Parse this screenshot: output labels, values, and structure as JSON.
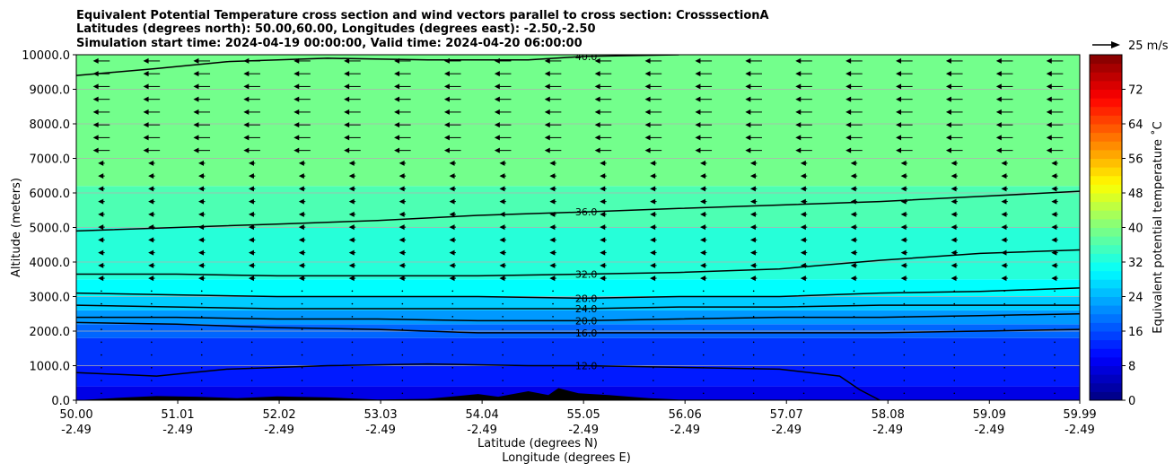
{
  "chart_data": {
    "type": "heatmap",
    "title_lines": [
      "Equivalent Potential Temperature cross section and wind vectors parallel to cross section: CrosssectionA",
      "Latitudes (degrees north): 50.00,60.00, Longitudes (degrees east): -2.50,-2.50",
      "Simulation start time: 2024-04-19 00:00:00, Valid time: 2024-04-20 06:00:00"
    ],
    "xlabel_line1": "Latitude (degrees N)",
    "xlabel_line2": "Longitude (degrees E)",
    "ylabel": "Altitude (meters)",
    "colorbar_label": "Equivalent potential temperature $^\\circ$C",
    "colorbar_label_display": "Equivalent potential temperature ˚C",
    "quiver_key_label": "25 m/s",
    "x_tick_lat": [
      "50.00",
      "51.01",
      "52.02",
      "53.03",
      "54.04",
      "55.05",
      "56.06",
      "57.07",
      "58.08",
      "59.09",
      "59.99"
    ],
    "x_tick_lon": [
      "-2.49",
      "-2.49",
      "-2.49",
      "-2.49",
      "-2.49",
      "-2.49",
      "-2.49",
      "-2.49",
      "-2.49",
      "-2.49",
      "-2.49"
    ],
    "x_range": [
      50.0,
      59.99
    ],
    "y_ticks": [
      "0.0",
      "1000.0",
      "2000.0",
      "3000.0",
      "4000.0",
      "5000.0",
      "6000.0",
      "7000.0",
      "8000.0",
      "9000.0",
      "10000.0"
    ],
    "y_range": [
      0,
      10000
    ],
    "colorbar_ticks": [
      "0",
      "8",
      "16",
      "24",
      "32",
      "40",
      "48",
      "56",
      "64",
      "72"
    ],
    "colorbar_range": [
      0,
      80
    ],
    "grid": "horizontal",
    "theta_e_bands": [
      {
        "alt_bottom": 0,
        "alt_top": 400,
        "value": 8
      },
      {
        "alt_bottom": 400,
        "alt_top": 1000,
        "value": 12
      },
      {
        "alt_bottom": 1000,
        "alt_top": 1800,
        "value": 14
      },
      {
        "alt_bottom": 1800,
        "alt_top": 2200,
        "value": 18
      },
      {
        "alt_bottom": 2200,
        "alt_top": 2600,
        "value": 22
      },
      {
        "alt_bottom": 2600,
        "alt_top": 3000,
        "value": 26
      },
      {
        "alt_bottom": 3000,
        "alt_top": 3500,
        "value": 30
      },
      {
        "alt_bottom": 3500,
        "alt_top": 5000,
        "value": 33
      },
      {
        "alt_bottom": 5000,
        "alt_top": 6200,
        "value": 36
      },
      {
        "alt_bottom": 6200,
        "alt_top": 10000,
        "value": 39
      }
    ],
    "contours": [
      {
        "label": "12.0",
        "points": [
          [
            50.0,
            800
          ],
          [
            50.8,
            700
          ],
          [
            51.5,
            900
          ],
          [
            52.5,
            1000
          ],
          [
            53.5,
            1050
          ],
          [
            54.5,
            1000
          ],
          [
            55.05,
            1000
          ],
          [
            56.0,
            950
          ],
          [
            57.0,
            900
          ],
          [
            57.6,
            700
          ],
          [
            57.8,
            300
          ],
          [
            58.0,
            0
          ]
        ]
      },
      {
        "label": "16.0",
        "points": [
          [
            50.0,
            2250
          ],
          [
            51.0,
            2200
          ],
          [
            52.0,
            2100
          ],
          [
            53.0,
            2050
          ],
          [
            54.0,
            1950
          ],
          [
            55.05,
            1950
          ],
          [
            56.0,
            1950
          ],
          [
            57.0,
            1950
          ],
          [
            58.0,
            1950
          ],
          [
            59.0,
            2000
          ],
          [
            59.99,
            2050
          ]
        ]
      },
      {
        "label": "20.0",
        "points": [
          [
            50.0,
            2400
          ],
          [
            51.0,
            2400
          ],
          [
            52.0,
            2350
          ],
          [
            53.0,
            2350
          ],
          [
            54.0,
            2300
          ],
          [
            55.05,
            2300
          ],
          [
            56.0,
            2350
          ],
          [
            57.0,
            2400
          ],
          [
            58.0,
            2400
          ],
          [
            59.0,
            2450
          ],
          [
            59.99,
            2500
          ]
        ]
      },
      {
        "label": "24.0",
        "points": [
          [
            50.0,
            2750
          ],
          [
            51.0,
            2700
          ],
          [
            52.0,
            2650
          ],
          [
            53.0,
            2650
          ],
          [
            54.0,
            2650
          ],
          [
            55.05,
            2650
          ],
          [
            56.0,
            2700
          ],
          [
            57.0,
            2700
          ],
          [
            58.0,
            2750
          ],
          [
            59.0,
            2750
          ],
          [
            59.99,
            2750
          ]
        ]
      },
      {
        "label": "28.0",
        "points": [
          [
            50.0,
            3100
          ],
          [
            51.0,
            3050
          ],
          [
            52.0,
            3000
          ],
          [
            53.0,
            3000
          ],
          [
            54.0,
            3000
          ],
          [
            55.05,
            2950
          ],
          [
            56.0,
            3000
          ],
          [
            57.0,
            3000
          ],
          [
            58.0,
            3100
          ],
          [
            59.0,
            3150
          ],
          [
            59.99,
            3250
          ]
        ]
      },
      {
        "label": "32.0",
        "points": [
          [
            50.0,
            3650
          ],
          [
            51.0,
            3650
          ],
          [
            52.0,
            3600
          ],
          [
            53.0,
            3600
          ],
          [
            54.0,
            3600
          ],
          [
            55.05,
            3650
          ],
          [
            56.0,
            3700
          ],
          [
            57.0,
            3800
          ],
          [
            58.0,
            4050
          ],
          [
            59.0,
            4250
          ],
          [
            59.99,
            4350
          ]
        ]
      },
      {
        "label": "36.0",
        "points": [
          [
            50.0,
            4900
          ],
          [
            51.0,
            5000
          ],
          [
            52.0,
            5100
          ],
          [
            53.0,
            5200
          ],
          [
            54.0,
            5350
          ],
          [
            55.05,
            5450
          ],
          [
            56.0,
            5550
          ],
          [
            57.0,
            5650
          ],
          [
            58.0,
            5750
          ],
          [
            59.0,
            5900
          ],
          [
            59.99,
            6050
          ]
        ]
      },
      {
        "label": "40.0",
        "points": [
          [
            50.0,
            9400
          ],
          [
            50.8,
            9600
          ],
          [
            51.5,
            9800
          ],
          [
            52.5,
            9900
          ],
          [
            53.5,
            9850
          ],
          [
            54.5,
            9850
          ],
          [
            55.05,
            9950
          ],
          [
            56.0,
            10000
          ]
        ]
      }
    ],
    "wind": {
      "direction": "northward-to-southward (arrows point toward decreasing latitude)",
      "speed_upper_mps": 15,
      "speed_mid_mps": 6,
      "speed_lower_mps": 2
    },
    "terrain": [
      [
        50.0,
        0
      ],
      [
        50.5,
        80
      ],
      [
        50.8,
        120
      ],
      [
        51.2,
        100
      ],
      [
        51.6,
        60
      ],
      [
        52.0,
        110
      ],
      [
        52.5,
        80
      ],
      [
        53.0,
        20
      ],
      [
        53.5,
        40
      ],
      [
        54.0,
        180
      ],
      [
        54.2,
        100
      ],
      [
        54.5,
        260
      ],
      [
        54.7,
        150
      ],
      [
        54.8,
        350
      ],
      [
        55.0,
        200
      ],
      [
        55.3,
        150
      ],
      [
        55.7,
        60
      ],
      [
        56.0,
        20
      ],
      [
        59.99,
        0
      ]
    ]
  }
}
